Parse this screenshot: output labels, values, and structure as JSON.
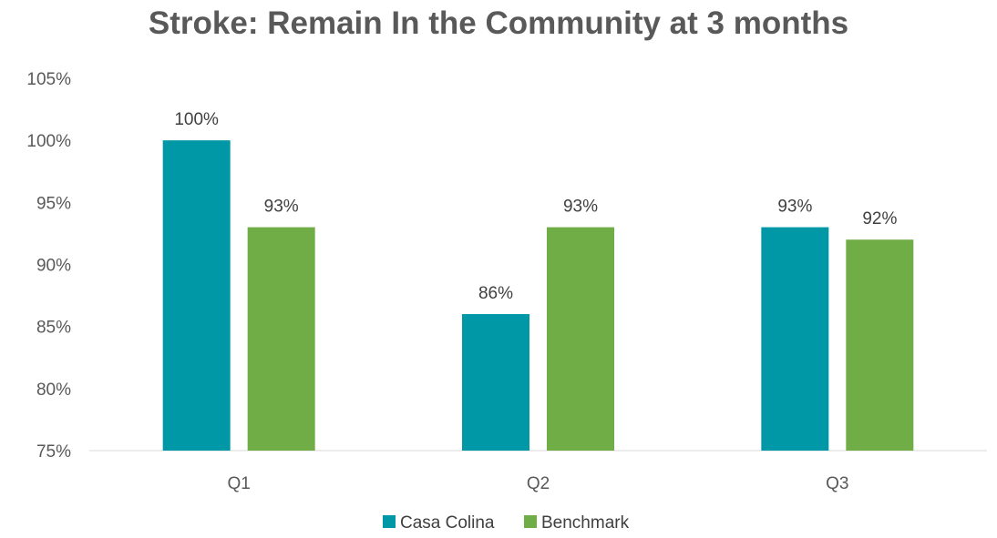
{
  "chart_data": {
    "type": "bar",
    "title": "Stroke: Remain In the Community at 3 months",
    "xlabel": "",
    "ylabel": "",
    "categories": [
      "Q1",
      "Q2",
      "Q3"
    ],
    "series": [
      {
        "name": "Casa Colina",
        "values": [
          100,
          86,
          93
        ],
        "labels": [
          "100%",
          "86%",
          "93%"
        ],
        "color": "#0097A7"
      },
      {
        "name": "Benchmark",
        "values": [
          93,
          93,
          92
        ],
        "labels": [
          "93%",
          "93%",
          "92%"
        ],
        "color": "#70AD47"
      }
    ],
    "ylim": [
      75,
      105
    ],
    "yticks": [
      75,
      80,
      85,
      90,
      95,
      100,
      105
    ],
    "ytick_labels": [
      "75%",
      "80%",
      "85%",
      "90%",
      "95%",
      "100%",
      "105%"
    ],
    "grid": false,
    "legend_position": "bottom"
  }
}
